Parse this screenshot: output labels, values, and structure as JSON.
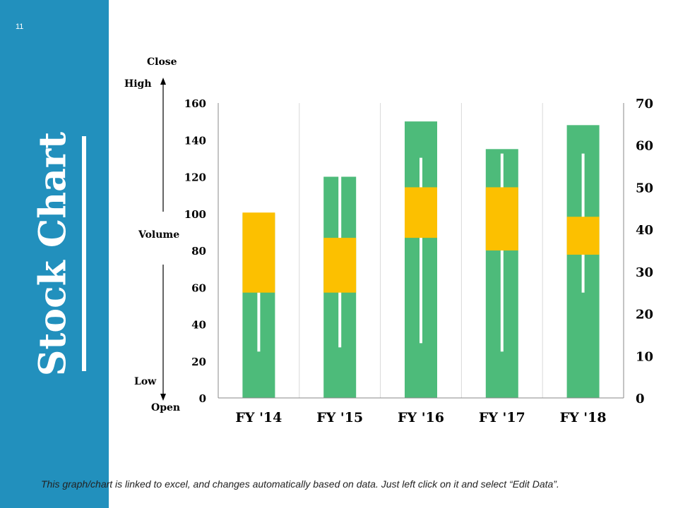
{
  "slide": {
    "number": "11",
    "title": "Stock Chart",
    "footer_note": "This graph/chart is linked to excel, and changes automatically based on data. Just left click on it and select “Edit Data”."
  },
  "side_labels": {
    "close": "Close",
    "high": "High",
    "volume": "Volume",
    "low": "Low",
    "open": "Open"
  },
  "colors": {
    "sidebar": "#2290bd",
    "volume_bar": "#4dbb7a",
    "candle_body": "#fcc000",
    "wick": "#ffffff",
    "gridline": "#d9d9d9",
    "axis": "#888888"
  },
  "chart_data": {
    "type": "bar",
    "subtype": "volume-open-high-low-close",
    "categories": [
      "FY '14",
      "FY '15",
      "FY '16",
      "FY '17",
      "FY '18"
    ],
    "left_axis": {
      "ylim": [
        0,
        160
      ],
      "ticks": [
        "0",
        "20",
        "40",
        "60",
        "80",
        "100",
        "120",
        "140",
        "160"
      ]
    },
    "right_axis": {
      "ylim": [
        0,
        70
      ],
      "ticks": [
        "0",
        "10",
        "20",
        "30",
        "40",
        "50",
        "60",
        "70"
      ]
    },
    "series": [
      {
        "name": "Volume",
        "axis": "left",
        "values": [
          100,
          120,
          150,
          135,
          148
        ]
      },
      {
        "name": "Open",
        "axis": "right",
        "values": [
          25,
          25,
          38,
          35,
          34
        ]
      },
      {
        "name": "High",
        "axis": "right",
        "values": [
          25,
          53,
          57,
          58,
          58
        ]
      },
      {
        "name": "Low",
        "axis": "right",
        "values": [
          11,
          12,
          13,
          11,
          25
        ]
      },
      {
        "name": "Close",
        "axis": "right",
        "values": [
          44,
          38,
          50,
          50,
          43
        ]
      }
    ],
    "grid": true
  }
}
